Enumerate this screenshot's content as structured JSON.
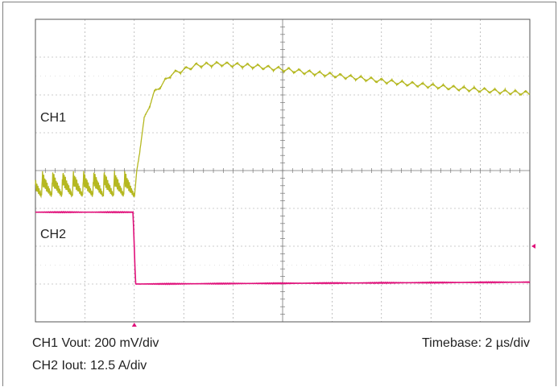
{
  "captions": {
    "ch1": "CH1 Vout: 200 mV/div",
    "ch2": "CH2 Iout: 12.5 A/div",
    "timebase": "Timebase: 2 µs/div"
  },
  "channel_labels": {
    "ch1": "CH1",
    "ch2": "CH2"
  },
  "colors": {
    "ch1": "#b5b820",
    "ch2": "#e0107a",
    "grid": "#9a9a9a",
    "border": "#555555"
  },
  "chart_data": {
    "type": "line",
    "title": "",
    "xlabel": "Timebase: 2 µs/div",
    "ylabel": "",
    "grid": true,
    "divisions": {
      "x": 10,
      "y": 8
    },
    "xlim": [
      -4,
      16
    ],
    "x_unit": "µs",
    "trigger_x": 0,
    "series": [
      {
        "name": "CH1",
        "scale": "200 mV/div",
        "ripple_amplitude_div": 0.25,
        "x": [
          -4,
          0,
          0.1,
          0.4,
          0.8,
          1.5,
          2.5,
          3.5,
          5,
          7,
          9,
          11,
          13,
          15,
          16
        ],
        "y": [
          -0.8,
          -0.8,
          0,
          1.35,
          2.05,
          2.55,
          2.78,
          2.82,
          2.75,
          2.6,
          2.45,
          2.3,
          2.18,
          2.08,
          2.04
        ]
      },
      {
        "name": "CH2",
        "scale": "12.5 A/div",
        "x": [
          -4,
          -0.05,
          0.05,
          16
        ],
        "y": [
          -1.1,
          -1.1,
          -3.0,
          -2.95
        ]
      }
    ]
  }
}
